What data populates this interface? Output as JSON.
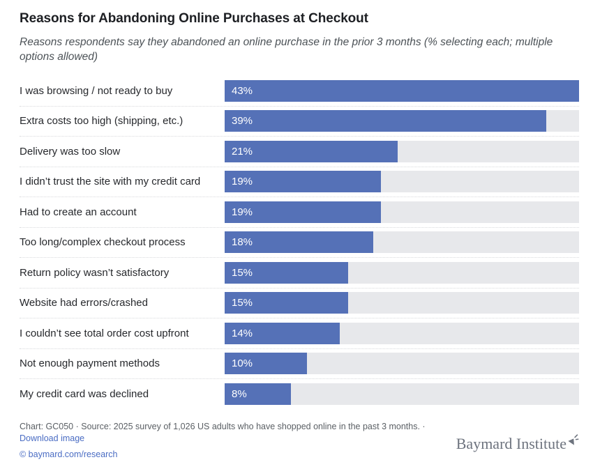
{
  "header": {
    "title": "Reasons for Abandoning Online Purchases at Checkout",
    "subtitle": "Reasons respondents say they abandoned an online purchase in the prior 3 months (% selecting each; multiple options allowed)"
  },
  "chart_data": {
    "type": "bar",
    "orientation": "horizontal",
    "title": "Reasons for Abandoning Online Purchases at Checkout",
    "xlabel": "",
    "ylabel": "",
    "value_suffix": "%",
    "scale_max": 43,
    "grid": false,
    "legend": false,
    "categories": [
      "I was browsing / not ready to buy",
      "Extra costs too high (shipping, etc.)",
      "Delivery was too slow",
      "I didn’t trust the site with my credit card",
      "Had to create an account",
      "Too long/complex checkout process",
      "Return policy wasn’t satisfactory",
      "Website had errors/crashed",
      "I couldn’t see total order cost upfront",
      "Not enough payment methods",
      "My credit card was declined"
    ],
    "values": [
      43,
      39,
      21,
      19,
      19,
      18,
      15,
      15,
      14,
      10,
      8
    ],
    "value_labels": [
      "43%",
      "39%",
      "21%",
      "19%",
      "19%",
      "18%",
      "15%",
      "15%",
      "14%",
      "10%",
      "8%"
    ]
  },
  "footer": {
    "source_text": "Chart: GC050 · Source: 2025 survey of 1,026 US adults who have shopped online in the past 3 months. ·",
    "download_label": "Download image",
    "copyright_label": "© baymard.com/research",
    "logo_text": "Baymard Institute",
    "logo_icon": "cursor-click-icon"
  },
  "colors": {
    "bar": "#5571b7",
    "track": "#e7e8eb",
    "separator": "#d8d9dc",
    "link": "#4a6cc3",
    "logo": "#6d737e"
  }
}
